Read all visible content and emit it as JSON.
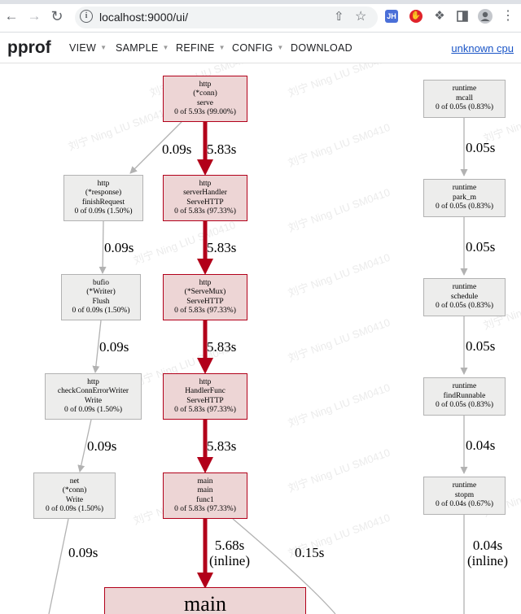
{
  "browser": {
    "url": "localhost:9000/ui/",
    "ext1": "JH"
  },
  "toolbar": {
    "logo": "pprof",
    "menus": [
      "VIEW",
      "SAMPLE",
      "REFINE",
      "CONFIG",
      "DOWNLOAD"
    ],
    "cpu_link": "unknown cpu"
  },
  "watermark": "刘宁 Ning LIU SM0410",
  "colors": {
    "hot_fill": "#edd5d5",
    "hot_edge": "#b2001a",
    "cold_fill": "#ededec",
    "cold_edge": "#b2b2b2"
  },
  "nodes": {
    "http_serve": {
      "l1": "http",
      "l2": "(*conn)",
      "l3": "serve",
      "l4": "0 of 5.93s (99.00%)"
    },
    "finish": {
      "l1": "http",
      "l2": "(*response)",
      "l3": "finishRequest",
      "l4": "0 of 0.09s (1.50%)"
    },
    "server_handler": {
      "l1": "http",
      "l2": "serverHandler",
      "l3": "ServeHTTP",
      "l4": "0 of 5.83s (97.33%)"
    },
    "bufio": {
      "l1": "bufio",
      "l2": "(*Writer)",
      "l3": "Flush",
      "l4": "0 of 0.09s (1.50%)"
    },
    "servemux": {
      "l1": "http",
      "l2": "(*ServeMux)",
      "l3": "ServeHTTP",
      "l4": "0 of 5.83s (97.33%)"
    },
    "checkconn": {
      "l1": "http",
      "l2": "checkConnErrorWriter",
      "l3": "Write",
      "l4": "0 of 0.09s (1.50%)"
    },
    "handlerfunc": {
      "l1": "http",
      "l2": "HandlerFunc",
      "l3": "ServeHTTP",
      "l4": "0 of 5.83s (97.33%)"
    },
    "net": {
      "l1": "net",
      "l2": "(*conn)",
      "l3": "Write",
      "l4": "0 of 0.09s (1.50%)"
    },
    "func1": {
      "l1": "main",
      "l2": "main",
      "l3": "func1",
      "l4": "0 of 5.83s (97.33%)"
    },
    "main_big": {
      "l1": "main"
    },
    "mcall": {
      "l1": "runtime",
      "l2": "mcall",
      "l3": "0 of 0.05s (0.83%)"
    },
    "park": {
      "l1": "runtime",
      "l2": "park_m",
      "l3": "0 of 0.05s (0.83%)"
    },
    "schedule": {
      "l1": "runtime",
      "l2": "schedule",
      "l3": "0 of 0.05s (0.83%)"
    },
    "findrunnable": {
      "l1": "runtime",
      "l2": "findRunnable",
      "l3": "0 of 0.05s (0.83%)"
    },
    "stopm": {
      "l1": "runtime",
      "l2": "stopm",
      "l3": "0 of 0.04s (0.67%)"
    }
  },
  "edges": {
    "serve_finish": "0.09s",
    "serve_handler": "5.83s",
    "finish_bufio": "0.09s",
    "handler_mux": "5.83s",
    "bufio_check": "0.09s",
    "mux_hf": "5.83s",
    "check_net": "0.09s",
    "hf_func1": "5.83s",
    "net_down": "0.09s",
    "func1_main": "5.68s",
    "func1_main_note": "(inline)",
    "func1_other": "0.15s",
    "mcall_park": "0.05s",
    "park_schedule": "0.05s",
    "schedule_find": "0.05s",
    "find_stopm": "0.04s",
    "stopm_down": "0.04s",
    "stopm_down_note": "(inline)"
  }
}
